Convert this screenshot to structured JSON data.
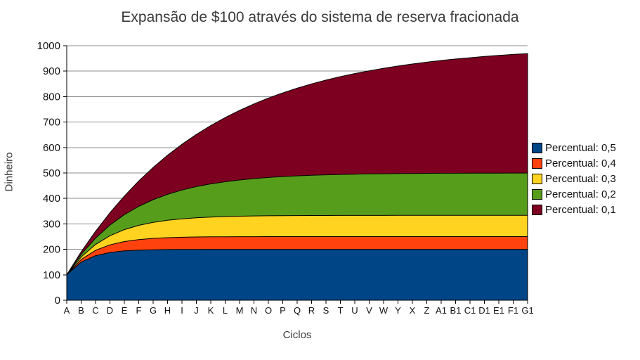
{
  "chart_data": {
    "type": "area",
    "title": "Expansão de $100 através do sistema de reserva fracionada",
    "xlabel": "Ciclos",
    "ylabel": "Dinheiro",
    "categories": [
      "A",
      "B",
      "C",
      "D",
      "E",
      "F",
      "G",
      "H",
      "I",
      "J",
      "K",
      "L",
      "M",
      "N",
      "O",
      "P",
      "Q",
      "R",
      "S",
      "T",
      "U",
      "V",
      "W",
      "Y",
      "X",
      "Z",
      "A1",
      "B1",
      "C1",
      "D1",
      "E1",
      "F1",
      "G1"
    ],
    "series": [
      {
        "name": "Percentual: 0,5",
        "color": "#004586",
        "values": [
          100,
          150,
          175,
          187.5,
          193.8,
          196.9,
          198.4,
          199.2,
          199.6,
          199.8,
          199.9,
          200,
          200,
          200,
          200,
          200,
          200,
          200,
          200,
          200,
          200,
          200,
          200,
          200,
          200,
          200,
          200,
          200,
          200,
          200,
          200,
          200,
          200
        ]
      },
      {
        "name": "Percentual: 0,4",
        "color": "#FF420E",
        "values": [
          100,
          160,
          196,
          217.6,
          230.6,
          238.3,
          243,
          245.8,
          247.5,
          248.5,
          249.1,
          249.5,
          249.7,
          249.8,
          249.9,
          249.9,
          250,
          250,
          250,
          250,
          250,
          250,
          250,
          250,
          250,
          250,
          250,
          250,
          250,
          250,
          250,
          250,
          250
        ]
      },
      {
        "name": "Percentual: 0,3",
        "color": "#FFD320",
        "values": [
          100,
          170,
          219,
          253.3,
          277.3,
          294.1,
          305.9,
          314.1,
          319.9,
          323.9,
          326.7,
          328.7,
          330.1,
          331.1,
          331.8,
          332.2,
          332.6,
          332.8,
          333,
          333.1,
          333.1,
          333.2,
          333.2,
          333.3,
          333.3,
          333.3,
          333.3,
          333.3,
          333.3,
          333.3,
          333.3,
          333.3,
          333.3
        ]
      },
      {
        "name": "Percentual: 0,2",
        "color": "#579D1C",
        "values": [
          100,
          180,
          244,
          295.2,
          336.2,
          368.9,
          395.1,
          416.1,
          432.9,
          446.3,
          457.1,
          465.6,
          472.5,
          478,
          482.4,
          485.9,
          488.7,
          491,
          492.8,
          494.2,
          495.4,
          496.3,
          497,
          497.6,
          498.1,
          498.5,
          498.8,
          499,
          499.2,
          499.4,
          499.5,
          499.6,
          499.7
        ]
      },
      {
        "name": "Percentual: 0,1",
        "color": "#7E0021",
        "values": [
          100,
          190,
          271,
          343.9,
          409.5,
          468.6,
          521.7,
          569.5,
          612.6,
          651.3,
          686.2,
          717.6,
          745.8,
          771.2,
          794.1,
          814.7,
          833.2,
          849.9,
          864.9,
          878.4,
          890.6,
          901.5,
          911.4,
          920.2,
          928.2,
          935.4,
          941.9,
          947.7,
          952.9,
          957.6,
          961.8,
          965.7,
          969.1
        ]
      }
    ],
    "ylim": [
      0,
      1000
    ],
    "ytick_step": 100,
    "grid": "horizontal",
    "legend_position": "right"
  },
  "colors": {
    "background": "#ffffff",
    "gridline": "#8c8c8c",
    "axis": "#000000",
    "area_outline": "#000000",
    "tick_text": "#111111"
  }
}
